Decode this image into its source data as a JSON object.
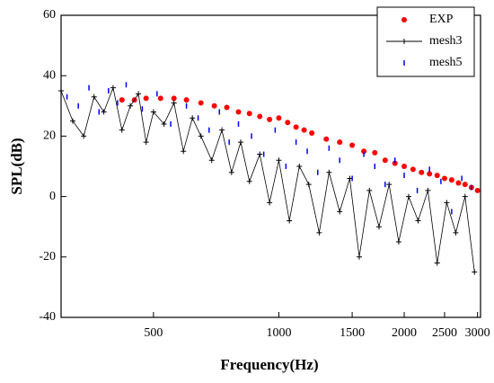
{
  "chart_data": {
    "type": "line",
    "xlabel": "Frequency(Hz)",
    "ylabel": "SPL(dB)",
    "xscale": "log",
    "xlim": [
      300,
      3050
    ],
    "xticks": [
      500,
      1000,
      1500,
      2000,
      2500,
      3000
    ],
    "ylim": [
      -40,
      60
    ],
    "yticks": [
      -40,
      -20,
      0,
      20,
      40,
      60
    ],
    "legend": "upper right",
    "series": [
      {
        "name": "EXP",
        "color": "#ff0000",
        "marker": "dot",
        "x": [
          420,
          450,
          480,
          520,
          560,
          600,
          650,
          700,
          750,
          800,
          850,
          900,
          950,
          1000,
          1050,
          1100,
          1150,
          1200,
          1300,
          1400,
          1500,
          1600,
          1700,
          1800,
          1900,
          2000,
          2100,
          2200,
          2300,
          2400,
          2500,
          2600,
          2700,
          2800,
          2900,
          3000
        ],
        "values": [
          32,
          32,
          32.5,
          32.5,
          32.5,
          32,
          31,
          30,
          29.5,
          28,
          27.5,
          26.5,
          25.5,
          26,
          24.5,
          23,
          22,
          21,
          19,
          18,
          17,
          15,
          14.5,
          12,
          11,
          10,
          9,
          8,
          7.5,
          7,
          6,
          5.5,
          4.5,
          4,
          3,
          2
        ]
      },
      {
        "name": "mesh3",
        "color": "#000000",
        "marker": "plus-line",
        "x": [
          300,
          320,
          340,
          360,
          380,
          400,
          420,
          440,
          460,
          480,
          500,
          530,
          560,
          590,
          620,
          650,
          690,
          730,
          770,
          810,
          850,
          900,
          950,
          1000,
          1060,
          1120,
          1180,
          1250,
          1320,
          1400,
          1480,
          1560,
          1650,
          1740,
          1840,
          1940,
          2050,
          2160,
          2280,
          2400,
          2530,
          2660,
          2800,
          2950
        ],
        "values": [
          35,
          25,
          20,
          33,
          28,
          36,
          22,
          30,
          34,
          18,
          28,
          24,
          31,
          15,
          26,
          20,
          12,
          22,
          8,
          18,
          5,
          14,
          -2,
          12,
          -8,
          10,
          4,
          -12,
          8,
          -5,
          6,
          -20,
          2,
          -10,
          4,
          -15,
          0,
          -8,
          2,
          -22,
          -2,
          -12,
          0,
          -25
        ]
      },
      {
        "name": "mesh5",
        "color": "#0000ff",
        "marker": "dash",
        "x": [
          310,
          330,
          350,
          370,
          390,
          410,
          430,
          470,
          510,
          550,
          600,
          640,
          680,
          720,
          760,
          800,
          860,
          920,
          980,
          1040,
          1100,
          1170,
          1240,
          1320,
          1400,
          1500,
          1600,
          1700,
          1800,
          1900,
          2000,
          2150,
          2300,
          2450,
          2600,
          2750,
          2900
        ],
        "values": [
          33,
          30,
          36,
          28,
          35,
          31,
          37,
          29,
          34,
          24,
          30,
          26,
          22,
          28,
          18,
          24,
          20,
          14,
          22,
          10,
          18,
          15,
          8,
          16,
          12,
          6,
          14,
          10,
          4,
          12,
          7,
          2,
          9,
          5,
          -5,
          6,
          3
        ]
      }
    ]
  }
}
